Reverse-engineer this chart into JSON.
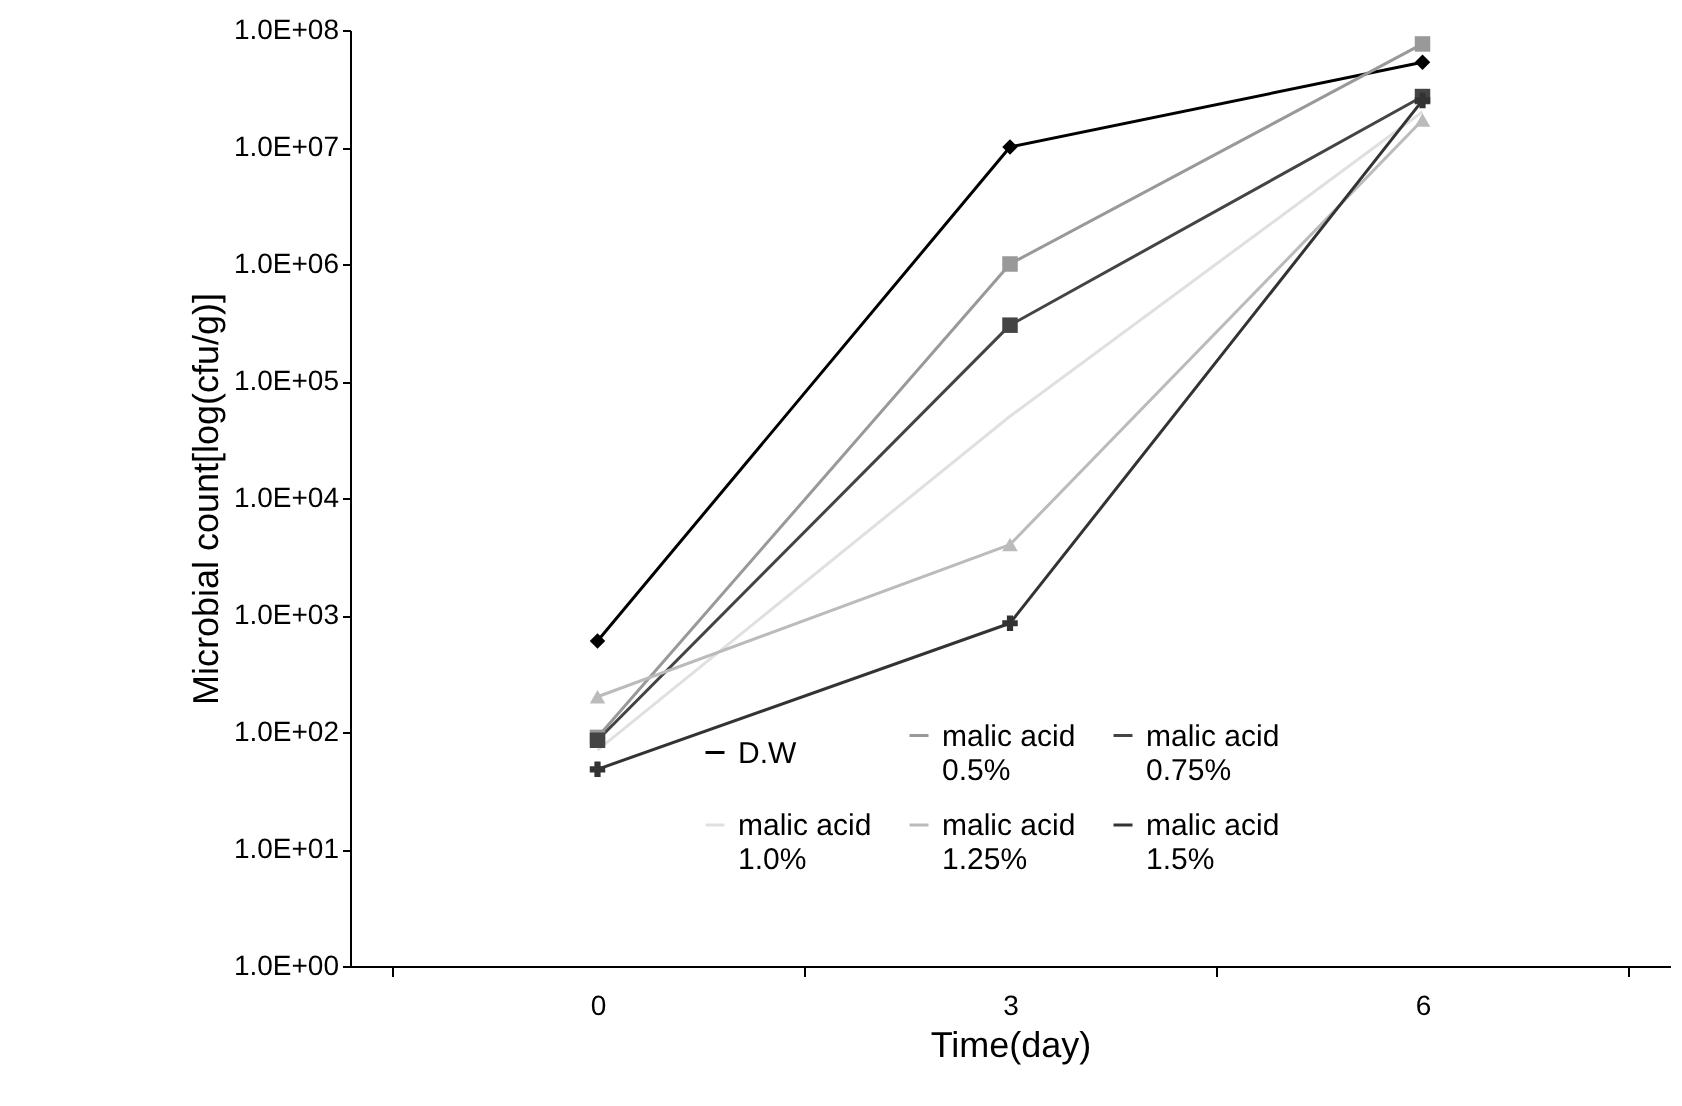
{
  "chart_data": {
    "type": "line",
    "xlabel": "Time(day)",
    "ylabel": "Microbial count[log(cfu/g)]",
    "categories": [
      "0",
      "3",
      "6"
    ],
    "log": true,
    "ylim": [
      1,
      100000000
    ],
    "yticks": [
      {
        "value": 1,
        "label": "1.0E+00"
      },
      {
        "value": 10,
        "label": "1.0E+01"
      },
      {
        "value": 100,
        "label": "1.0E+02"
      },
      {
        "value": 1000,
        "label": "1.0E+03"
      },
      {
        "value": 10000,
        "label": "1.0E+04"
      },
      {
        "value": 100000,
        "label": "1.0E+05"
      },
      {
        "value": 1000000,
        "label": "1.0E+06"
      },
      {
        "value": 10000000,
        "label": "1.0E+07"
      },
      {
        "value": 100000000,
        "label": "1.0E+08"
      }
    ],
    "legend": "bottom",
    "grid": false,
    "series": [
      {
        "name": "D.W",
        "color": "#000000",
        "marker": "diamond",
        "values": [
          600,
          10000000,
          53000000
        ]
      },
      {
        "name": "malic acid 0.5%",
        "color": "#999999",
        "marker": "square",
        "values": [
          90,
          1000000,
          76000000
        ]
      },
      {
        "name": "malic acid 0.75%",
        "color": "#444444",
        "marker": "square",
        "values": [
          85,
          300000,
          27000000
        ]
      },
      {
        "name": "malic acid 1.0%",
        "color": "#e0e0e0",
        "marker": "none",
        "values": [
          70,
          50000,
          20000000
        ]
      },
      {
        "name": "malic acid 1.25%",
        "color": "#bbbbbb",
        "marker": "triangle",
        "values": [
          200,
          4000,
          17000000
        ]
      },
      {
        "name": "malic acid 1.5%",
        "color": "#333333",
        "marker": "cross",
        "values": [
          48,
          850,
          25000000
        ]
      }
    ]
  }
}
